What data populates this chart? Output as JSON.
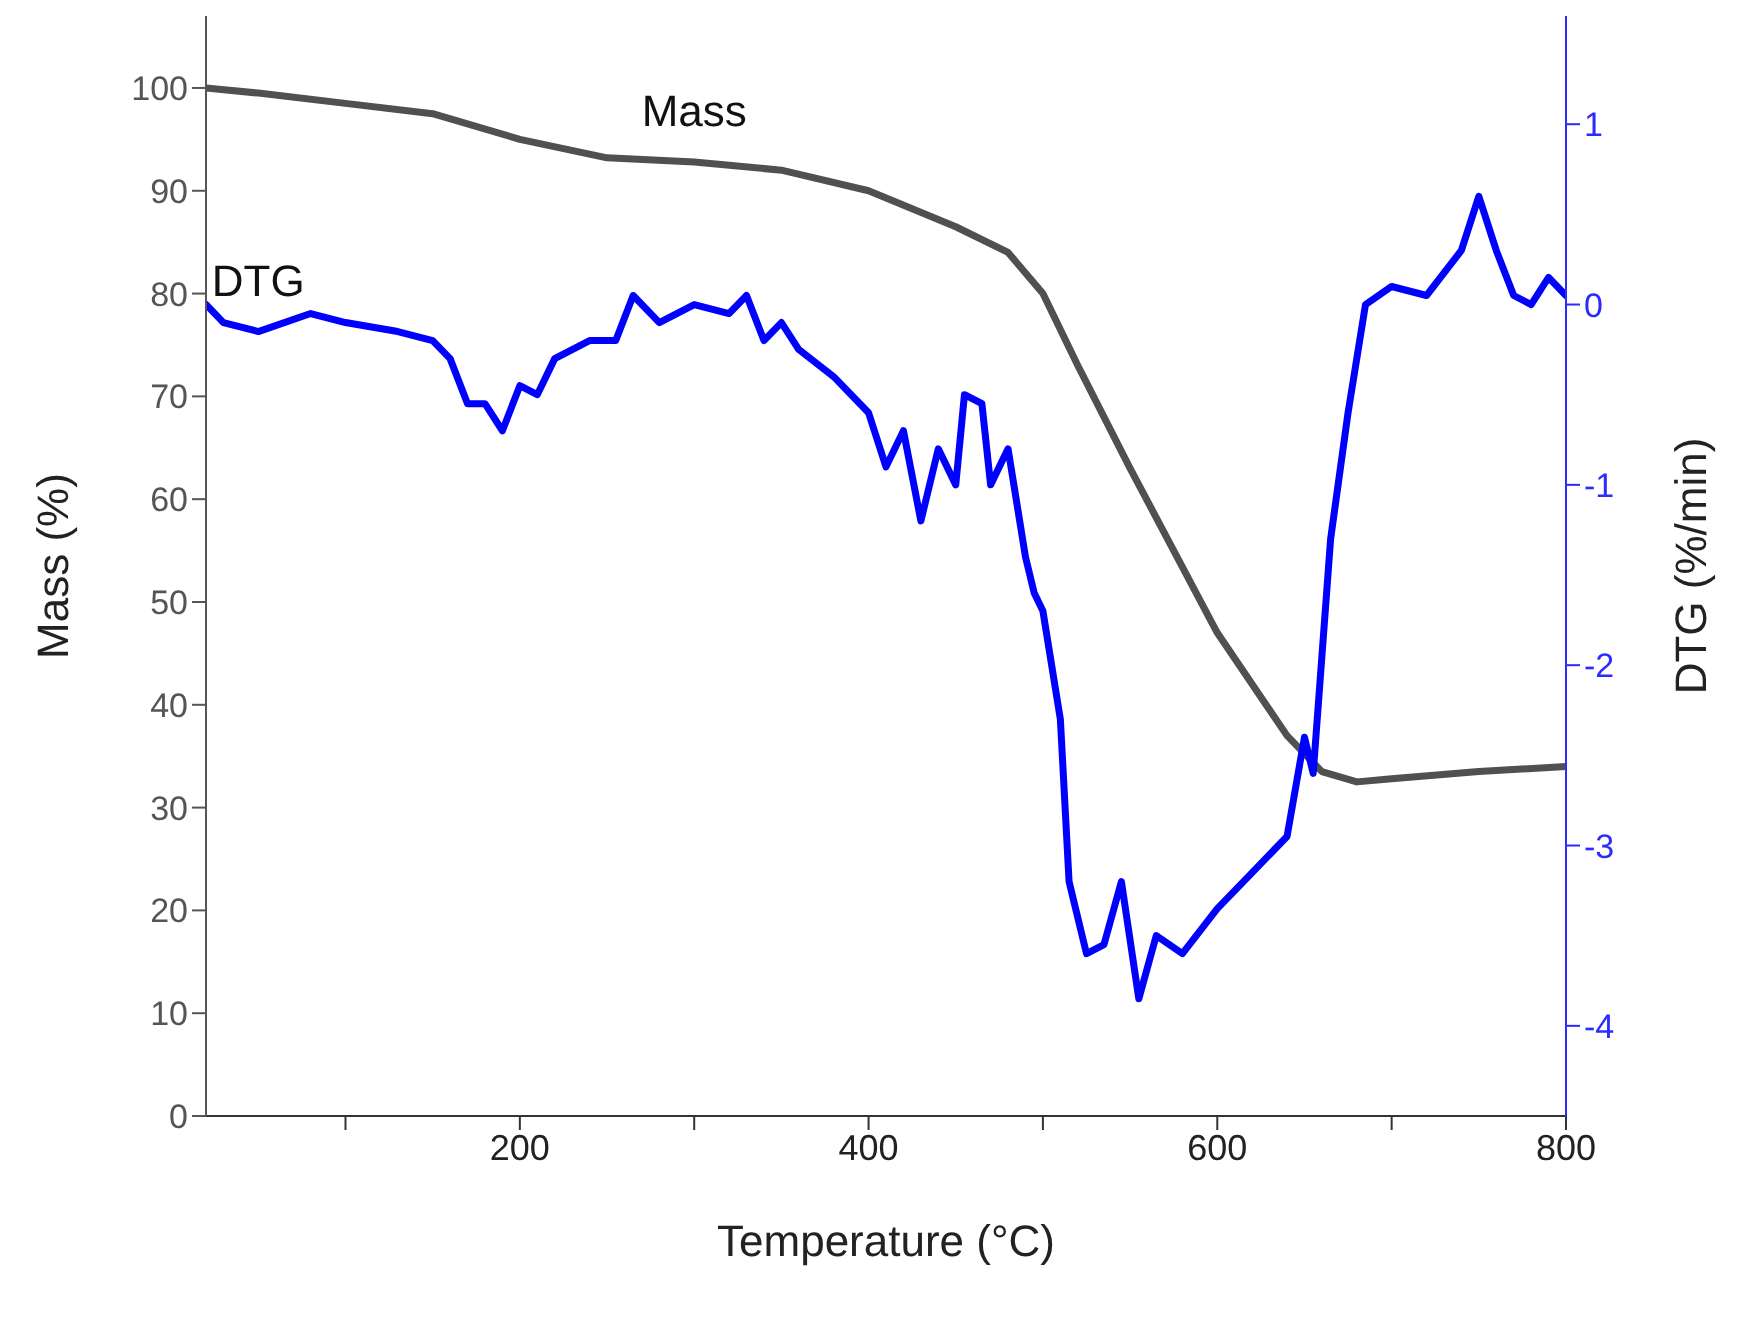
{
  "chart_data": {
    "type": "line",
    "xlabel": "Temperature (°C)",
    "ylabel": "Mass (%)",
    "y2label": "DTG (%/min)",
    "xlim": [
      20,
      800
    ],
    "xticks": [
      {
        "value": 100,
        "label": null
      },
      200,
      {
        "value": 300,
        "label": null
      },
      400,
      {
        "value": 500,
        "label": null
      },
      600,
      {
        "value": 700,
        "label": null
      },
      800
    ],
    "ylim": [
      0,
      107
    ],
    "yticks": [
      0,
      10,
      20,
      30,
      40,
      50,
      60,
      70,
      80,
      90,
      100
    ],
    "y2lim": [
      -4.5,
      1.6
    ],
    "y2ticks": [
      -4,
      -3,
      -2,
      -1,
      0,
      1
    ],
    "marker": "none",
    "line_style": "solid",
    "series": [
      {
        "name": "Mass",
        "color": "#505050",
        "x": [
          20,
          50,
          100,
          150,
          200,
          250,
          300,
          350,
          400,
          450,
          480,
          500,
          520,
          550,
          600,
          640,
          660,
          680,
          700,
          750,
          800
        ],
        "values": [
          100,
          99.5,
          98.5,
          97.5,
          95,
          93.2,
          92.8,
          92,
          90,
          86.5,
          84,
          80,
          73,
          63,
          47,
          37,
          33.5,
          32.5,
          32.8,
          33.5,
          34
        ]
      },
      {
        "name": "DTG",
        "color": "#0000ff",
        "axis": "y2",
        "x": [
          20,
          30,
          50,
          80,
          100,
          130,
          150,
          160,
          170,
          180,
          190,
          200,
          210,
          220,
          240,
          255,
          265,
          280,
          300,
          320,
          330,
          340,
          350,
          360,
          380,
          400,
          410,
          420,
          430,
          440,
          450,
          455,
          465,
          470,
          480,
          490,
          495,
          500,
          510,
          515,
          525,
          535,
          545,
          555,
          565,
          580,
          600,
          620,
          640,
          650,
          655,
          665,
          675,
          685,
          700,
          720,
          740,
          750,
          760,
          770,
          780,
          790,
          800
        ],
        "values": [
          0,
          -0.1,
          -0.15,
          -0.05,
          -0.1,
          -0.15,
          -0.2,
          -0.3,
          -0.55,
          -0.55,
          -0.7,
          -0.45,
          -0.5,
          -0.3,
          -0.2,
          -0.2,
          0.05,
          -0.1,
          0,
          -0.05,
          0.05,
          -0.2,
          -0.1,
          -0.25,
          -0.4,
          -0.6,
          -0.9,
          -0.7,
          -1.2,
          -0.8,
          -1,
          -0.5,
          -0.55,
          -1,
          -0.8,
          -1.4,
          -1.6,
          -1.7,
          -2.3,
          -3.2,
          -3.6,
          -3.55,
          -3.2,
          -3.85,
          -3.5,
          -3.6,
          -3.35,
          -3.15,
          -2.95,
          -2.4,
          -2.6,
          -1.3,
          -0.6,
          0,
          0.1,
          0.05,
          0.3,
          0.6,
          0.3,
          0.05,
          0,
          0.15,
          0.05
        ]
      }
    ]
  }
}
